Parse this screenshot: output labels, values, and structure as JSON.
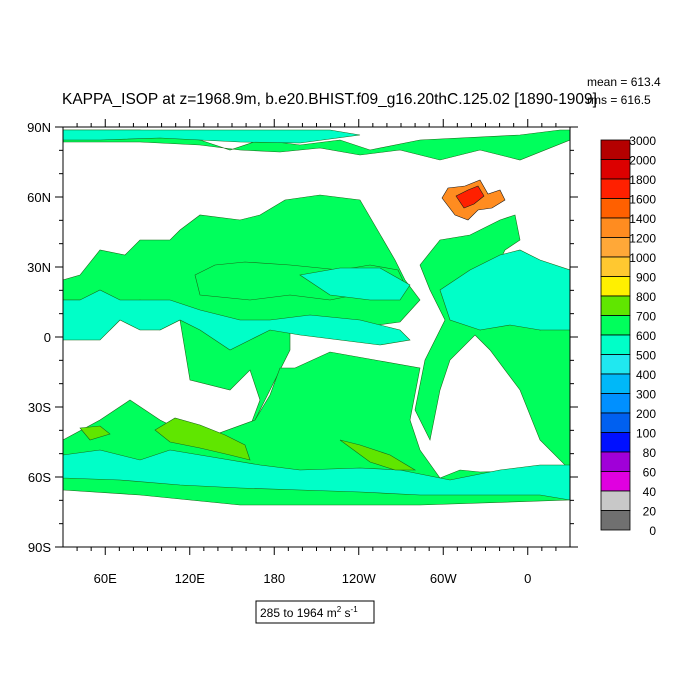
{
  "title": "KAPPA_ISOP at z=1968.9m, b.e20.BHIST.f09_g16.20thC.125.02 [1890-1909]",
  "stats": {
    "mean": "mean = 613.4",
    "rms": "rms = 616.5"
  },
  "range_label": {
    "text": "285 to 1964 m",
    "sup1": "2",
    "mid": " s",
    "sup2": "-1"
  },
  "chart_data": {
    "type": "heatmap",
    "projection": "cylindrical equidistant",
    "variable": "KAPPA_ISOP",
    "depth": "z=1968.9m",
    "units": "m2 s-1",
    "range_min": 285,
    "range_max": 1964,
    "mean": 613.4,
    "rms": 616.5,
    "lon_range": [
      30,
      390
    ],
    "lat_range": [
      -90,
      90
    ],
    "x_tick_labels": [
      "60E",
      "120E",
      "180",
      "120W",
      "60W",
      "0"
    ],
    "y_tick_labels": [
      "90N",
      "60N",
      "30N",
      "0",
      "30S",
      "60S",
      "90S"
    ],
    "colorbar_labels": [
      "3000",
      "2000",
      "1800",
      "1600",
      "1400",
      "1200",
      "1000",
      "900",
      "800",
      "700",
      "600",
      "500",
      "400",
      "300",
      "200",
      "100",
      "80",
      "60",
      "40",
      "20",
      "0"
    ],
    "colorbar_colors": [
      "#b40000",
      "#dc0000",
      "#ff2000",
      "#ff6000",
      "#ff8c20",
      "#ffa838",
      "#ffc830",
      "#fff000",
      "#60e600",
      "#00ff5c",
      "#00ffc8",
      "#20e8f0",
      "#00b8f8",
      "#0090ff",
      "#0060f0",
      "#0010ff",
      "#a000d8",
      "#e000e0",
      "#c8c8c8",
      "#707070"
    ],
    "dominant_field_color": "#00ff5c",
    "secondary_field_color": "#00ffc8"
  }
}
